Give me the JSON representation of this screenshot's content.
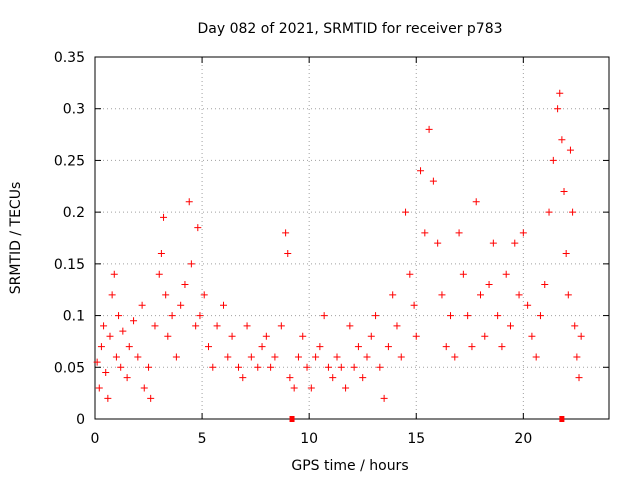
{
  "chart_data": {
    "type": "scatter",
    "title": "Day 082 of 2021, SRMTID for receiver p783",
    "xlabel": "GPS time / hours",
    "ylabel": "SRMTID / TECUs",
    "xlim": [
      0,
      24
    ],
    "ylim": [
      0,
      0.35
    ],
    "xticks": [
      0,
      5,
      10,
      15,
      20
    ],
    "xtick_labels": [
      "0",
      "5",
      "10",
      "15",
      "20"
    ],
    "yticks": [
      0,
      0.05,
      0.1,
      0.15,
      0.2,
      0.25,
      0.3,
      0.35
    ],
    "ytick_labels": [
      "0",
      "0.05",
      "0.1",
      "0.15",
      "0.2",
      "0.25",
      "0.3",
      "0.35"
    ],
    "grid": true,
    "marker": "plus",
    "color": "#ff0000",
    "series": [
      {
        "name": "SRMTID",
        "points": [
          [
            0.1,
            0.055
          ],
          [
            0.2,
            0.03
          ],
          [
            0.3,
            0.07
          ],
          [
            0.4,
            0.09
          ],
          [
            0.5,
            0.045
          ],
          [
            0.6,
            0.02
          ],
          [
            0.7,
            0.08
          ],
          [
            0.8,
            0.12
          ],
          [
            0.9,
            0.14
          ],
          [
            1.0,
            0.06
          ],
          [
            1.1,
            0.1
          ],
          [
            1.2,
            0.05
          ],
          [
            1.3,
            0.085
          ],
          [
            1.5,
            0.04
          ],
          [
            1.6,
            0.07
          ],
          [
            1.8,
            0.095
          ],
          [
            2.0,
            0.06
          ],
          [
            2.2,
            0.11
          ],
          [
            2.3,
            0.03
          ],
          [
            2.5,
            0.05
          ],
          [
            2.6,
            0.02
          ],
          [
            2.8,
            0.09
          ],
          [
            3.0,
            0.14
          ],
          [
            3.1,
            0.16
          ],
          [
            3.2,
            0.195
          ],
          [
            3.3,
            0.12
          ],
          [
            3.4,
            0.08
          ],
          [
            3.6,
            0.1
          ],
          [
            3.8,
            0.06
          ],
          [
            4.0,
            0.11
          ],
          [
            4.2,
            0.13
          ],
          [
            4.4,
            0.21
          ],
          [
            4.5,
            0.15
          ],
          [
            4.7,
            0.09
          ],
          [
            4.8,
            0.185
          ],
          [
            4.9,
            0.1
          ],
          [
            5.1,
            0.12
          ],
          [
            5.3,
            0.07
          ],
          [
            5.5,
            0.05
          ],
          [
            5.7,
            0.09
          ],
          [
            6.0,
            0.11
          ],
          [
            6.2,
            0.06
          ],
          [
            6.4,
            0.08
          ],
          [
            6.7,
            0.05
          ],
          [
            6.9,
            0.04
          ],
          [
            7.1,
            0.09
          ],
          [
            7.3,
            0.06
          ],
          [
            7.6,
            0.05
          ],
          [
            7.8,
            0.07
          ],
          [
            8.0,
            0.08
          ],
          [
            8.2,
            0.05
          ],
          [
            8.4,
            0.06
          ],
          [
            8.7,
            0.09
          ],
          [
            8.9,
            0.18
          ],
          [
            9.0,
            0.16
          ],
          [
            9.1,
            0.04
          ],
          [
            9.3,
            0.03
          ],
          [
            9.5,
            0.06
          ],
          [
            9.7,
            0.08
          ],
          [
            9.9,
            0.05
          ],
          [
            10.1,
            0.03
          ],
          [
            10.3,
            0.06
          ],
          [
            10.5,
            0.07
          ],
          [
            10.7,
            0.1
          ],
          [
            10.9,
            0.05
          ],
          [
            11.1,
            0.04
          ],
          [
            11.3,
            0.06
          ],
          [
            11.5,
            0.05
          ],
          [
            11.7,
            0.03
          ],
          [
            11.9,
            0.09
          ],
          [
            12.1,
            0.05
          ],
          [
            12.3,
            0.07
          ],
          [
            12.5,
            0.04
          ],
          [
            12.7,
            0.06
          ],
          [
            12.9,
            0.08
          ],
          [
            13.1,
            0.1
          ],
          [
            13.3,
            0.05
          ],
          [
            13.5,
            0.02
          ],
          [
            13.7,
            0.07
          ],
          [
            13.9,
            0.12
          ],
          [
            14.1,
            0.09
          ],
          [
            14.3,
            0.06
          ],
          [
            14.5,
            0.2
          ],
          [
            14.7,
            0.14
          ],
          [
            14.9,
            0.11
          ],
          [
            15.0,
            0.08
          ],
          [
            15.2,
            0.24
          ],
          [
            15.4,
            0.18
          ],
          [
            15.6,
            0.28
          ],
          [
            15.8,
            0.23
          ],
          [
            16.0,
            0.17
          ],
          [
            16.2,
            0.12
          ],
          [
            16.4,
            0.07
          ],
          [
            16.6,
            0.1
          ],
          [
            16.8,
            0.06
          ],
          [
            17.0,
            0.18
          ],
          [
            17.2,
            0.14
          ],
          [
            17.4,
            0.1
          ],
          [
            17.6,
            0.07
          ],
          [
            17.8,
            0.21
          ],
          [
            18.0,
            0.12
          ],
          [
            18.2,
            0.08
          ],
          [
            18.4,
            0.13
          ],
          [
            18.6,
            0.17
          ],
          [
            18.8,
            0.1
          ],
          [
            19.0,
            0.07
          ],
          [
            19.2,
            0.14
          ],
          [
            19.4,
            0.09
          ],
          [
            19.6,
            0.17
          ],
          [
            19.8,
            0.12
          ],
          [
            20.0,
            0.18
          ],
          [
            20.2,
            0.11
          ],
          [
            20.4,
            0.08
          ],
          [
            20.6,
            0.06
          ],
          [
            20.8,
            0.1
          ],
          [
            21.0,
            0.13
          ],
          [
            21.2,
            0.2
          ],
          [
            21.4,
            0.25
          ],
          [
            21.6,
            0.3
          ],
          [
            21.7,
            0.315
          ],
          [
            21.8,
            0.27
          ],
          [
            21.9,
            0.22
          ],
          [
            22.0,
            0.16
          ],
          [
            22.1,
            0.12
          ],
          [
            22.2,
            0.26
          ],
          [
            22.3,
            0.2
          ],
          [
            22.4,
            0.09
          ],
          [
            22.5,
            0.06
          ],
          [
            22.6,
            0.04
          ],
          [
            22.7,
            0.08
          ]
        ]
      }
    ],
    "zero_markers_x": [
      9.2,
      21.8
    ]
  }
}
